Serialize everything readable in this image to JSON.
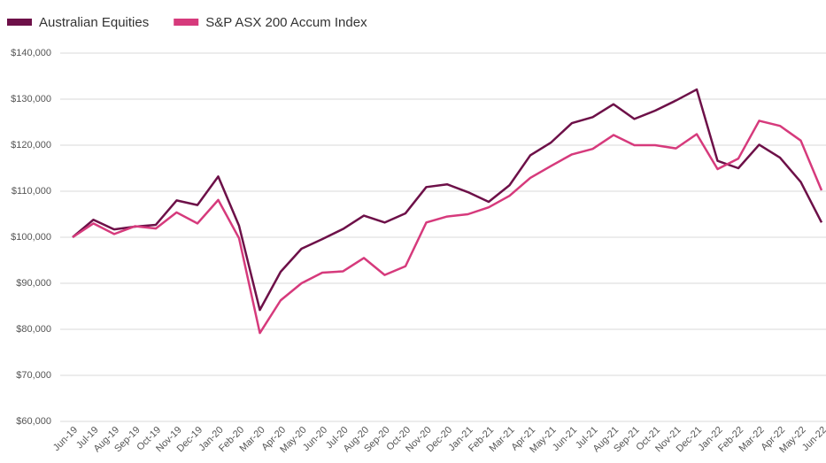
{
  "chart_data": {
    "type": "line",
    "categories": [
      "Jun-19",
      "Jul-19",
      "Aug-19",
      "Sep-19",
      "Oct-19",
      "Nov-19",
      "Dec-19",
      "Jan-20",
      "Feb-20",
      "Mar-20",
      "Apr-20",
      "May-20",
      "Jun-20",
      "Jul-20",
      "Aug-20",
      "Sep-20",
      "Oct-20",
      "Nov-20",
      "Dec-20",
      "Jan-21",
      "Feb-21",
      "Mar-21",
      "Apr-21",
      "May-21",
      "Jun-21",
      "Jul-21",
      "Aug-21",
      "Sep-21",
      "Oct-21",
      "Nov-21",
      "Dec-21",
      "Jan-22",
      "Feb-22",
      "Mar-22",
      "Apr-22",
      "May-22",
      "Jun-22"
    ],
    "series": [
      {
        "name": "Australian Equities",
        "color": "#6d1048",
        "values": [
          100000,
          103800,
          101700,
          102300,
          102700,
          108000,
          107000,
          113200,
          102500,
          84200,
          92500,
          97500,
          99600,
          101800,
          104700,
          103200,
          105200,
          110900,
          111500,
          109800,
          107700,
          111300,
          117800,
          120600,
          124800,
          126100,
          128900,
          125700,
          127500,
          129700,
          132100,
          116600,
          115000,
          120100,
          117300,
          112000,
          103200
        ]
      },
      {
        "name": "S&P ASX 200 Accum Index",
        "color": "#d63a7c",
        "values": [
          100000,
          103000,
          100700,
          102400,
          101900,
          105400,
          103000,
          108100,
          99800,
          79200,
          86300,
          90000,
          92300,
          92600,
          95500,
          91800,
          93700,
          103200,
          104500,
          105000,
          106500,
          109000,
          112900,
          115500,
          118000,
          119200,
          122200,
          120000,
          120000,
          119300,
          122400,
          114800,
          117100,
          125300,
          124200,
          121000,
          110200
        ]
      }
    ],
    "ylim": [
      60000,
      140000
    ],
    "yticks": [
      {
        "value": 60000,
        "label": "$60,000"
      },
      {
        "value": 70000,
        "label": "$70,000"
      },
      {
        "value": 80000,
        "label": "$80,000"
      },
      {
        "value": 90000,
        "label": "$90,000"
      },
      {
        "value": 100000,
        "label": "$100,000"
      },
      {
        "value": 110000,
        "label": "$110,000"
      },
      {
        "value": 120000,
        "label": "$120,000"
      },
      {
        "value": 130000,
        "label": "$130,000"
      },
      {
        "value": 140000,
        "label": "$140,000"
      }
    ],
    "grid": true,
    "legend": "top-left"
  }
}
